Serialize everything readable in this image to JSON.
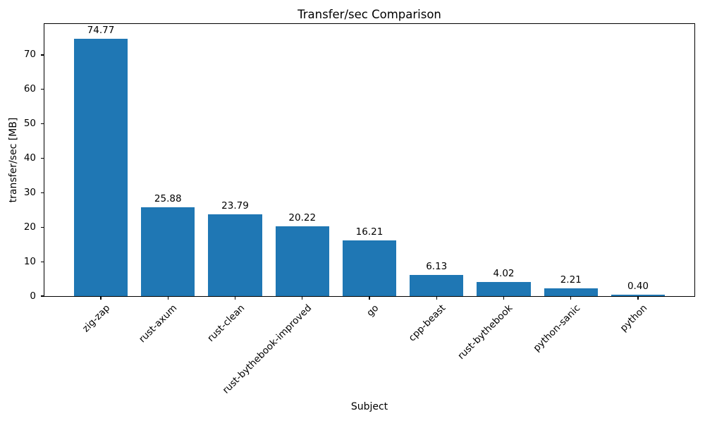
{
  "chart_data": {
    "type": "bar",
    "title": "Transfer/sec Comparison",
    "xlabel": "Subject",
    "ylabel": "transfer/sec [MB]",
    "categories": [
      "zig-zap",
      "rust-axum",
      "rust-clean",
      "rust-bythebook-improved",
      "go",
      "cpp-beast",
      "rust-bythebook",
      "python-sanic",
      "python"
    ],
    "values": [
      74.77,
      25.88,
      23.79,
      20.22,
      16.21,
      6.13,
      4.02,
      2.21,
      0.4
    ],
    "value_labels": [
      "74.77",
      "25.88",
      "23.79",
      "20.22",
      "16.21",
      "6.13",
      "4.02",
      "2.21",
      "0.40"
    ],
    "yticks": [
      0,
      10,
      20,
      30,
      40,
      50,
      60,
      70
    ],
    "ylim": [
      0,
      79
    ],
    "x_tick_rotation_deg": 45,
    "bar_color": "#1f77b4",
    "axis_color": "#000000",
    "text_color": "#000000",
    "grid": false,
    "legend": "none"
  }
}
